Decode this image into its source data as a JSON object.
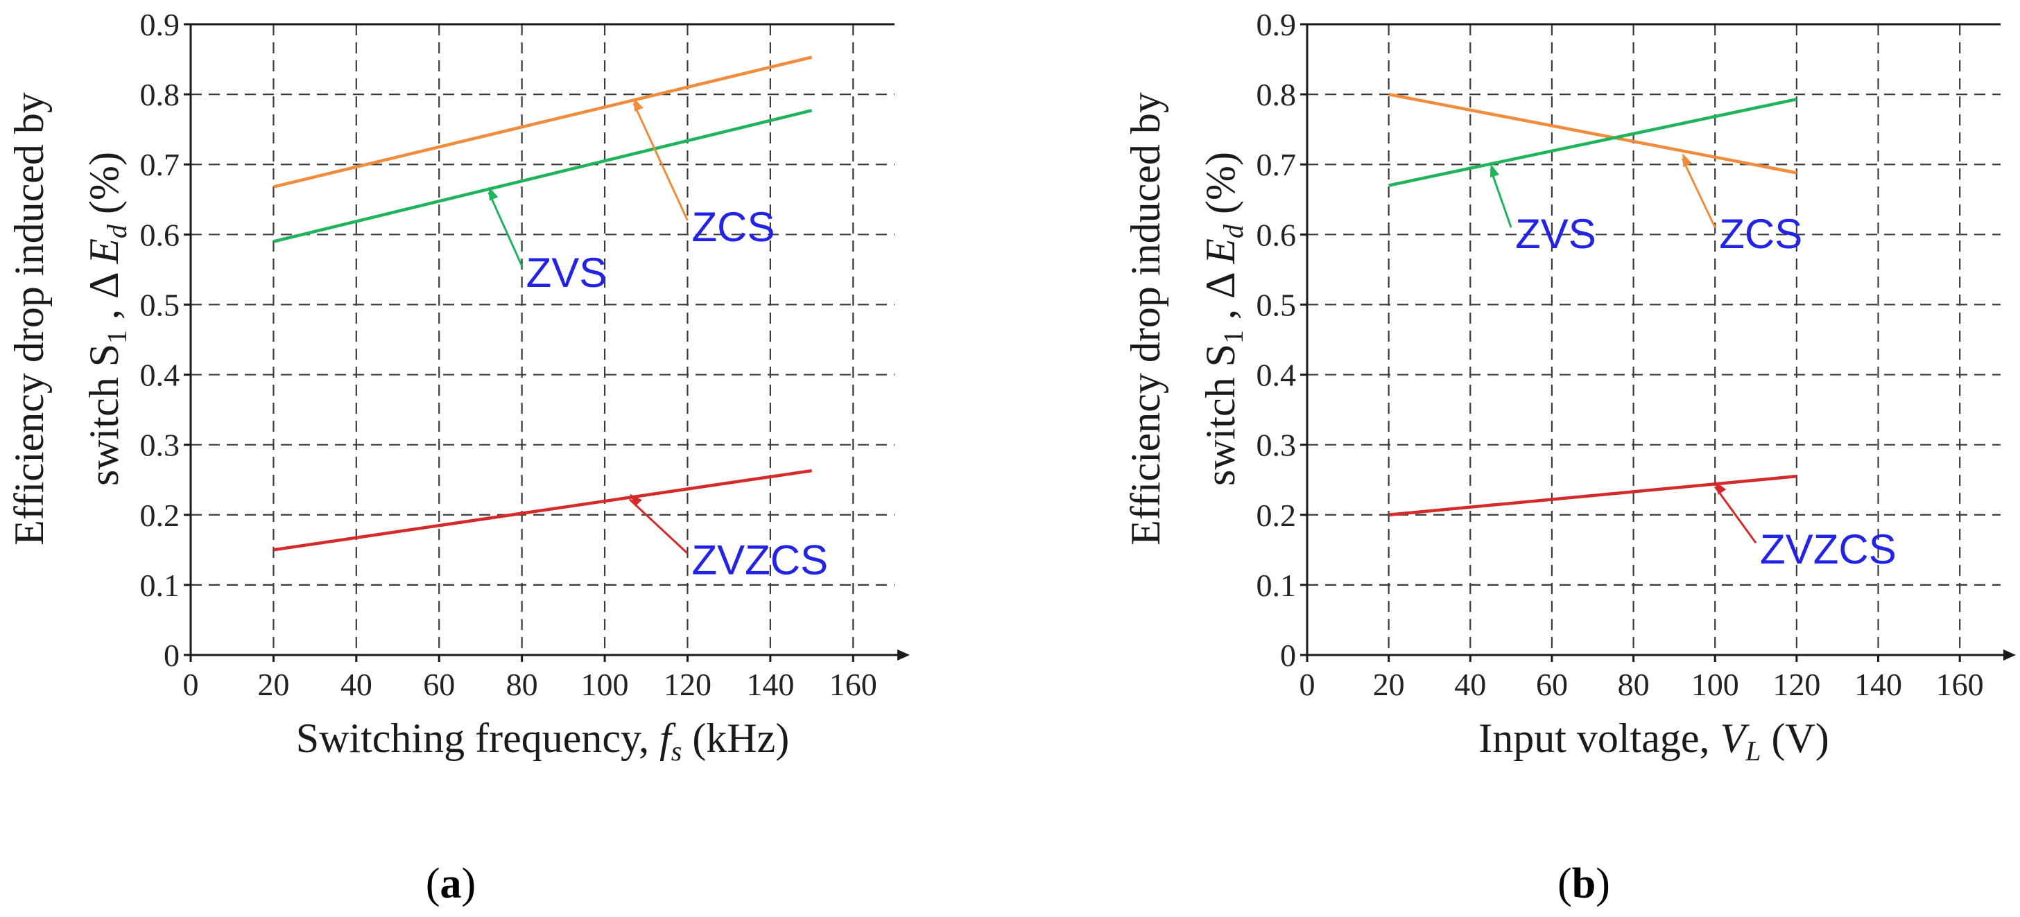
{
  "chart_data": [
    {
      "type": "line",
      "panel": "a",
      "xlabel_main": "Switching frequency, ",
      "xlabel_var": "f",
      "xlabel_sub": "s",
      "xlabel_unit": " (kHz)",
      "ylabel_line1": "Efficiency drop induced by",
      "ylabel_line2_pre": "switch S",
      "ylabel_line2_sub1": "1",
      "ylabel_line2_mid": " , Δ ",
      "ylabel_line2_var": "E",
      "ylabel_line2_sub2": "d",
      "ylabel_line2_unit": " (%)",
      "xlim": [
        0,
        170
      ],
      "ylim": [
        0,
        0.9
      ],
      "xticks": [
        0,
        20,
        40,
        60,
        80,
        100,
        120,
        140,
        160
      ],
      "yticks": [
        0,
        0.1,
        0.2,
        0.3,
        0.4,
        0.5,
        0.6,
        0.7,
        0.8,
        0.9
      ],
      "grid": true,
      "series": [
        {
          "name": "ZCS",
          "color": "#f08c3c",
          "x": [
            20,
            150
          ],
          "y": [
            0.668,
            0.853
          ]
        },
        {
          "name": "ZVS",
          "color": "#1fb35c",
          "x": [
            20,
            150
          ],
          "y": [
            0.59,
            0.777
          ]
        },
        {
          "name": "ZVZCS",
          "color": "#d42a2a",
          "x": [
            20,
            150
          ],
          "y": [
            0.15,
            0.263
          ]
        }
      ],
      "annotations": [
        {
          "text": "ZCS",
          "series": "ZCS",
          "point": [
            107,
            0.797
          ],
          "label_at": [
            120,
            0.62
          ]
        },
        {
          "text": "ZVS",
          "series": "ZVS",
          "point": [
            72,
            0.67
          ],
          "label_at": [
            80,
            0.555
          ]
        },
        {
          "text": "ZVZCS",
          "series": "ZVZCS",
          "point": [
            106,
            0.232
          ],
          "label_at": [
            120,
            0.145
          ]
        }
      ]
    },
    {
      "type": "line",
      "panel": "b",
      "xlabel_main": "Input voltage, ",
      "xlabel_var": "V",
      "xlabel_sub": "L",
      "xlabel_unit": " (V)",
      "ylabel_line1": "Efficiency drop induced by",
      "ylabel_line2_pre": "switch S",
      "ylabel_line2_sub1": "1",
      "ylabel_line2_mid": " , Δ ",
      "ylabel_line2_var": "E",
      "ylabel_line2_sub2": "d",
      "ylabel_line2_unit": " (%)",
      "xlim": [
        0,
        170
      ],
      "ylim": [
        0,
        0.9
      ],
      "xticks": [
        0,
        20,
        40,
        60,
        80,
        100,
        120,
        140,
        160
      ],
      "yticks": [
        0,
        0.1,
        0.2,
        0.3,
        0.4,
        0.5,
        0.6,
        0.7,
        0.8,
        0.9
      ],
      "grid": true,
      "series": [
        {
          "name": "ZCS",
          "color": "#f08c3c",
          "x": [
            20,
            120
          ],
          "y": [
            0.8,
            0.688
          ]
        },
        {
          "name": "ZVS",
          "color": "#1fb35c",
          "x": [
            20,
            120
          ],
          "y": [
            0.67,
            0.793
          ]
        },
        {
          "name": "ZVZCS",
          "color": "#d42a2a",
          "x": [
            20,
            120
          ],
          "y": [
            0.2,
            0.255
          ]
        }
      ],
      "annotations": [
        {
          "text": "ZVS",
          "series": "ZVS",
          "point": [
            45,
            0.703
          ],
          "label_at": [
            50,
            0.61
          ]
        },
        {
          "text": "ZCS",
          "series": "ZCS",
          "point": [
            92,
            0.718
          ],
          "label_at": [
            100,
            0.61
          ]
        },
        {
          "text": "ZVZCS",
          "series": "ZVZCS",
          "point": [
            100,
            0.25
          ],
          "label_at": [
            110,
            0.16
          ]
        }
      ]
    }
  ],
  "panel_labels": [
    "a",
    "b"
  ]
}
